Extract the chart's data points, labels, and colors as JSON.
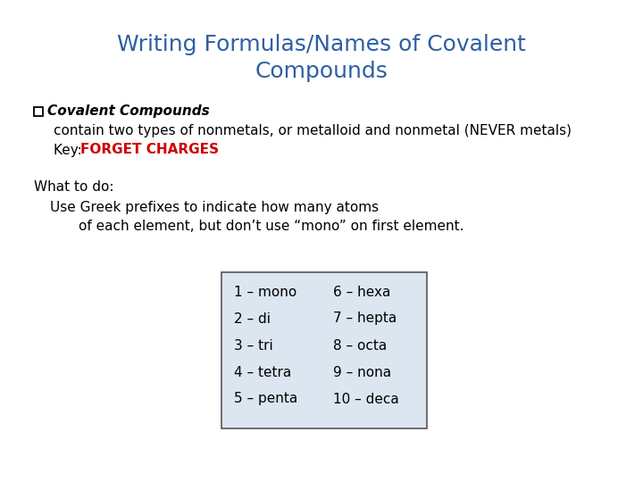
{
  "title_line1": "Writing Formulas/Names of Covalent",
  "title_line2": "Compounds",
  "title_color": "#2E5FA3",
  "title_fontsize": 18,
  "bg_color": "#ffffff",
  "bullet_label": "Covalent Compounds",
  "line1": "contain two types of nonmetals, or metalloid and nonmetal (NEVER metals)",
  "line2_prefix": "Key: ",
  "line2_highlight": "FORGET CHARGES",
  "highlight_color": "#CC0000",
  "whatodo_label": "What to do:",
  "whatodo_line1": "Use Greek prefixes to indicate how many atoms",
  "whatodo_line2": "of each element, but don’t use “mono” on first element.",
  "table_left": [
    "1 – mono",
    "2 – di",
    "3 – tri",
    "4 – tetra",
    "5 – penta"
  ],
  "table_right": [
    "6 – hexa",
    "7 – hepta",
    "8 – octa",
    "9 – nona",
    "10 – deca"
  ],
  "table_bg": "#dce6f1",
  "table_border": "#555555",
  "body_fontsize": 11,
  "bold_fontsize": 11,
  "table_fontsize": 11
}
